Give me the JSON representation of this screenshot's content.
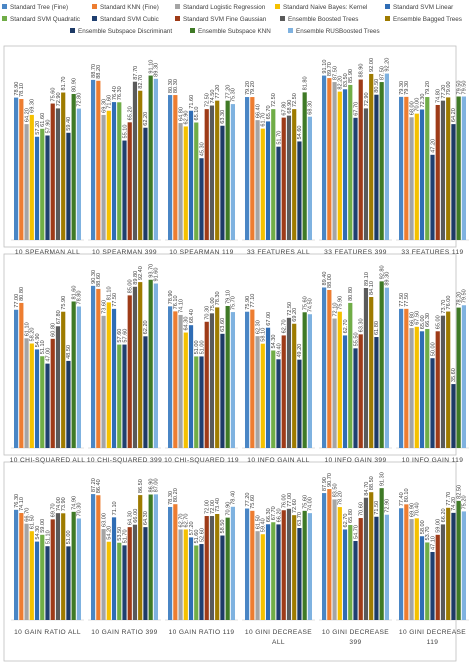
{
  "legend": [
    {
      "name": "Standard Tree (Fine)",
      "color": "#4a86c5"
    },
    {
      "name": "Standard KNN (Fine)",
      "color": "#ed7d31"
    },
    {
      "name": "Standard Logistic Regression",
      "color": "#a5a5a5"
    },
    {
      "name": "Standard Naive Bayes: Kernel",
      "color": "#f5c100"
    },
    {
      "name": "Standard SVM Linear",
      "color": "#2f6db5"
    },
    {
      "name": "Standard SVM Quadratic",
      "color": "#70ad47"
    },
    {
      "name": "Standard SVM Cubic",
      "color": "#1f3f70"
    },
    {
      "name": "Standard SVM Fine Gaussian",
      "color": "#9e3b18"
    },
    {
      "name": "Ensemble Boosted Trees",
      "color": "#5a5a5a"
    },
    {
      "name": "Ensemble Bagged Trees",
      "color": "#9e7b00"
    },
    {
      "name": "Ensemble Subspace Discriminant",
      "color": "#1d3a66"
    },
    {
      "name": "Ensemble Subspace KNN",
      "color": "#3f7a26"
    },
    {
      "name": "Ensemble RUSBoosted Trees",
      "color": "#7fb2e0"
    }
  ],
  "chart_data": {
    "type": "bar",
    "title": "",
    "xlabel": "",
    "ylabel": "",
    "ylim": [
      0,
      100
    ],
    "grid": false,
    "legend_position": "top",
    "series": [
      "Standard Tree (Fine)",
      "Standard KNN (Fine)",
      "Standard Logistic Regression",
      "Standard Naive Bayes: Kernel",
      "Standard SVM Linear",
      "Standard SVM Quadratic",
      "Standard SVM Cubic",
      "Standard SVM Fine Gaussian",
      "Ensemble Boosted Trees",
      "Ensemble Bagged Trees",
      "Ensemble Subspace Discriminant",
      "Ensemble Subspace KNN",
      "Ensemble RUSBoosted Trees"
    ],
    "groups": [
      {
        "category": "10 SPEARMAN ALL",
        "values": [
          78.9,
          78.1,
          64.2,
          69.3,
          57.2,
          61.6,
          57.9,
          75.6,
          72.9,
          81.7,
          59.4,
          80.9,
          72.8
        ]
      },
      {
        "category": "10 SPEARMAN 399",
        "values": [
          88.7,
          88.2,
          69.3,
          71.6,
          76.4,
          76.3,
          55.1,
          65.2,
          87.7,
          82.7,
          62.2,
          91.1,
          89.3
        ]
      },
      {
        "category": "10 SPEARMAN 119",
        "values": [
          80.3,
          80.3,
          64.8,
          62.9,
          71.6,
          65.1,
          45.3,
          72.5,
          74.5,
          77.2,
          63.3,
          77.2,
          75.3
        ]
      },
      {
        "category": "33 FEATURES ALL",
        "values": [
          79.2,
          79.2,
          66.4,
          61.7,
          65.7,
          72.5,
          51.7,
          67.8,
          68.9,
          72.5,
          54.6,
          81.8,
          68.3
        ]
      },
      {
        "category": "33 FEATURES 399",
        "values": [
          91.1,
          89.7,
          87.5,
          82.2,
          83.5,
          85.9,
          67.7,
          88.9,
          72.9,
          92.0,
          80.5,
          87.5,
          92.2
        ]
      },
      {
        "category": "33 FEATURES 119",
        "values": [
          79.3,
          79.3,
          68.0,
          70.0,
          72.3,
          79.2,
          47.2,
          74.8,
          77.2,
          79.0,
          64.2,
          79.5,
          79.5
        ]
      },
      {
        "category": "10 CHI-SQUARED ALL",
        "values": [
          77.0,
          80.8,
          61.1,
          58.2,
          54.9,
          51.1,
          47.0,
          60.8,
          67.8,
          75.9,
          48.5,
          81.6,
          78.8
        ]
      },
      {
        "category": "10 CHI-SQUARED 399",
        "values": [
          90.3,
          88.6,
          73.6,
          81.1,
          77.5,
          57.6,
          57.6,
          85.0,
          89.8,
          92.4,
          62.2,
          93.7,
          91.6
        ]
      },
      {
        "category": "10 CHI-SQUARED 119",
        "values": [
          78.9,
          76.1,
          74.1,
          64.3,
          68.4,
          51.0,
          51.0,
          70.3,
          75.0,
          78.3,
          63.6,
          79.1,
          75.7
        ]
      },
      {
        "category": "10 INFO GAIN ALL",
        "values": [
          75.9,
          77.1,
          62.3,
          58.1,
          67.0,
          54.3,
          49.4,
          62.7,
          72.5,
          69.2,
          49.2,
          75.6,
          74.5
        ]
      },
      {
        "category": "10 INFO GAIN 399",
        "values": [
          89.4,
          88.0,
          72.1,
          75.9,
          62.7,
          80.8,
          55.5,
          63.3,
          89.1,
          84.1,
          61.8,
          92.8,
          89.3
        ]
      },
      {
        "category": "10 INFO GAIN 119",
        "values": [
          77.5,
          77.5,
          66.8,
          67.5,
          65.0,
          66.3,
          50.0,
          65.0,
          73.7,
          76.0,
          35.6,
          78.2,
          79.5
        ]
      },
      {
        "category": "10 GAIN RATIO ALL",
        "values": [
          76.3,
          74.1,
          66.7,
          61.5,
          54.3,
          59.0,
          51.1,
          69.7,
          74.0,
          73.9,
          51.0,
          74.9,
          70.3
        ]
      },
      {
        "category": "10 GAIN RATIO 399",
        "values": [
          87.2,
          86.4,
          63.0,
          54.2,
          71.1,
          53.5,
          51.7,
          64.3,
          66.0,
          86.5,
          64.3,
          86.9,
          87.0
        ]
      },
      {
        "category": "10 GAIN RATIO 119",
        "values": [
          78.3,
          80.2,
          62.7,
          62.7,
          57.2,
          51.6,
          52.6,
          72.0,
          72.0,
          73.4,
          58.5,
          70.9,
          78.4
        ]
      },
      {
        "category": "10 GINI DECREASE ALL",
        "values": [
          77.2,
          75.6,
          61.5,
          59.4,
          66.3,
          67.7,
          66.2,
          76.0,
          77.0,
          72.6,
          63.7,
          75.6,
          74.0
        ]
      },
      {
        "category": "10 GINI DECREASE 399",
        "values": [
          87.9,
          90.7,
          83.5,
          78.2,
          62.7,
          65.8,
          54.7,
          70.6,
          84.7,
          88.5,
          71.5,
          91.3,
          72.9
        ]
      },
      {
        "category": "10 GINI DECREASE 119",
        "values": [
          77.4,
          80.1,
          69.9,
          70.4,
          58.0,
          53.7,
          47.1,
          59.0,
          66.2,
          77.7,
          74.2,
          82.5,
          75.2
        ]
      }
    ]
  }
}
